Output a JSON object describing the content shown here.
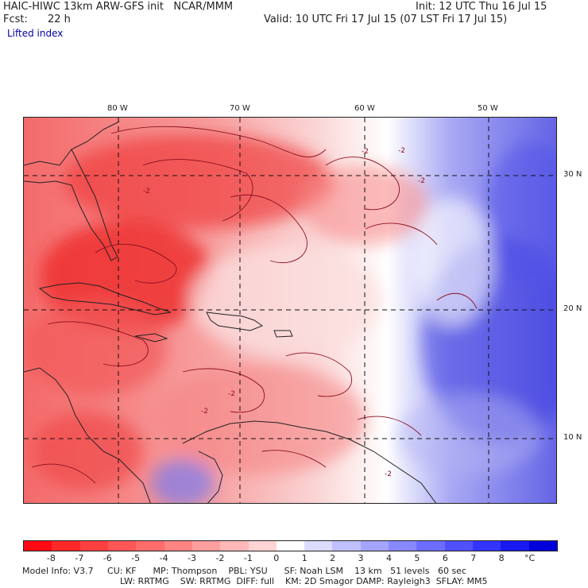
{
  "header": {
    "model_line": "HAIC-HIWC 13km ARW-GFS init   NCAR/MMM",
    "init_line": "Init: 12 UTC Thu 16 Jul 15",
    "fcst_label": "Fcst:",
    "fcst_value": "22 h",
    "valid_line": "Valid: 10 UTC Fri 17 Jul 15 (07 LST Fri 17 Jul 15)",
    "field_name": "Lifted index"
  },
  "map": {
    "lon_labels": [
      "80 W",
      "70 W",
      "60 W",
      "50 W"
    ],
    "lat_labels": [
      "30 N",
      "20 N",
      "10 N"
    ],
    "contour_labels": [
      "-2",
      "-2",
      "-2",
      "-2",
      "-2",
      "-2",
      "-2"
    ]
  },
  "colorbar": {
    "labels": [
      "-8",
      "-7",
      "-6",
      "-5",
      "-4",
      "-3",
      "-2",
      "-1",
      "0",
      "1",
      "2",
      "3",
      "4",
      "5",
      "6",
      "7",
      "8",
      "°C"
    ],
    "colors": [
      "#ff0a14",
      "#ff2828",
      "#ff4040",
      "#ff5656",
      "#ff6c6c",
      "#ff8484",
      "#ff9e9e",
      "#ffb8b8",
      "#ffd4d4",
      "#ffffff",
      "#dcdcff",
      "#c0c0ff",
      "#a4a4ff",
      "#8888ff",
      "#6c6cff",
      "#5050ff",
      "#3434ff",
      "#1818f0",
      "#0000dc"
    ]
  },
  "footer": {
    "line1": "Model Info: V3.7     CU: KF      MP: Thompson    PBL: YSU      SF: Noah LSM    13 km   51 levels   60 sec",
    "line2": "LW: RRTMG    SW: RRTMG  DIFF: full    KM: 2D Smagor DAMP: Rayleigh3  SFLAY: MM5"
  }
}
